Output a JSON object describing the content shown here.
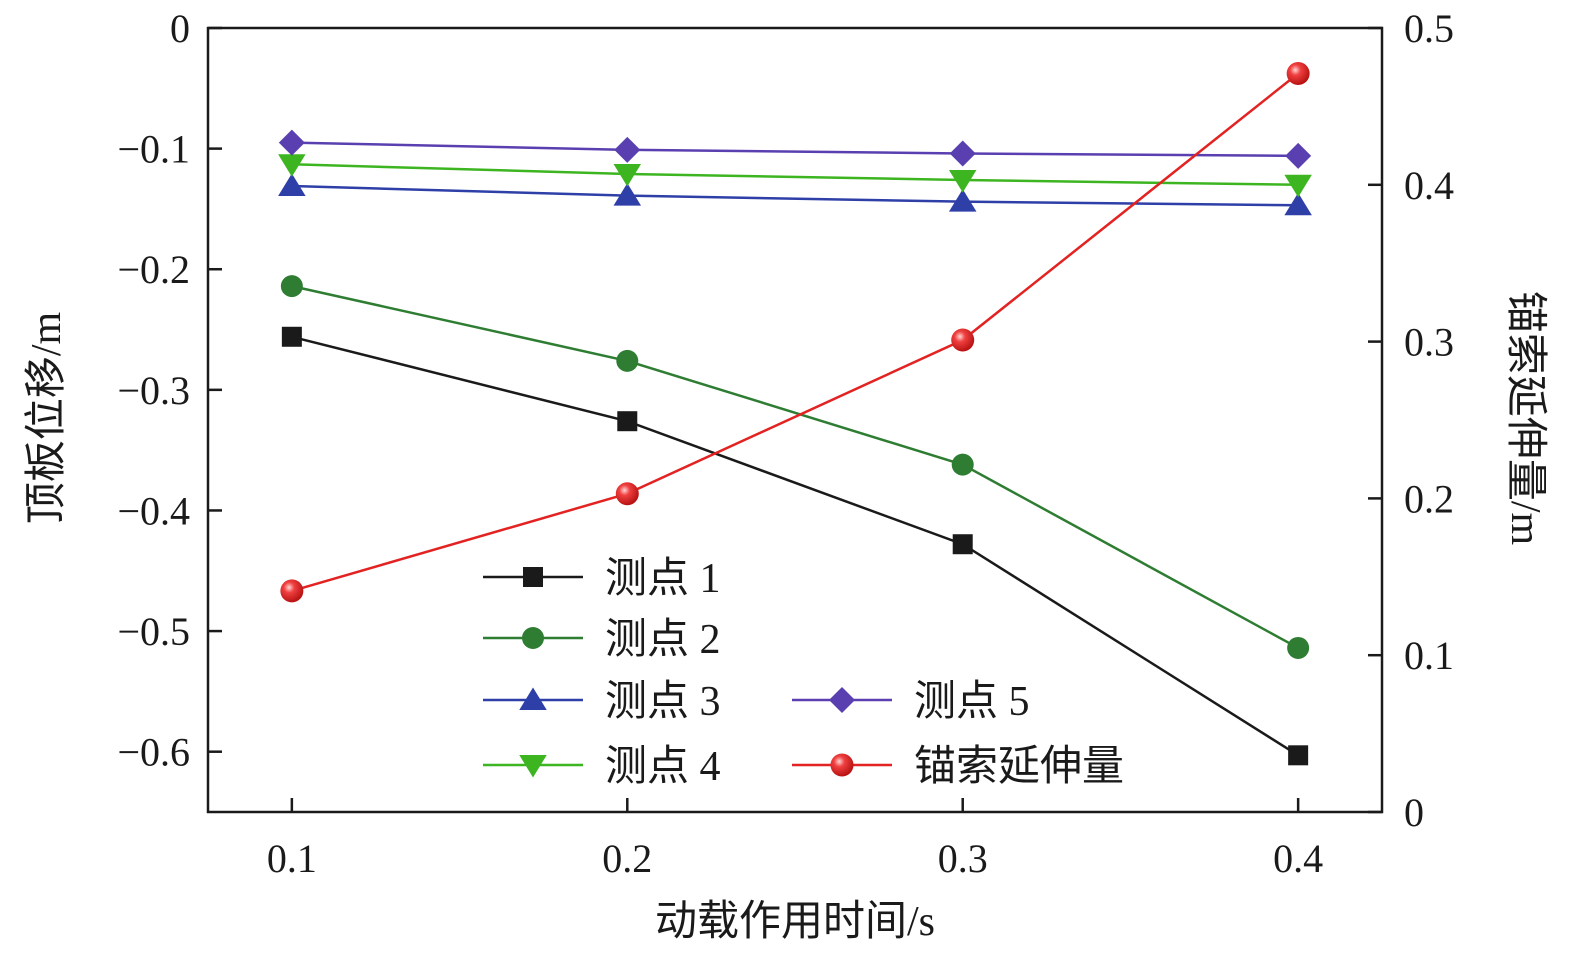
{
  "chart_data": {
    "type": "line",
    "title": "",
    "xlabel": "动载作用时间/s",
    "ylabel": "顶板位移/m",
    "y2label": "锚索延伸量/m",
    "x": [
      0.1,
      0.2,
      0.3,
      0.4
    ],
    "x_tick_labels": [
      "0.1",
      "0.2",
      "0.3",
      "0.4"
    ],
    "xlim": [
      0.075,
      0.425
    ],
    "ylim": [
      -0.65,
      0
    ],
    "y_ticks": [
      0,
      -0.1,
      -0.2,
      -0.3,
      -0.4,
      -0.5,
      -0.6
    ],
    "y_tick_labels": [
      "0",
      "−0.1",
      "−0.2",
      "−0.3",
      "−0.4",
      "−0.5",
      "−0.6"
    ],
    "y2lim": [
      0,
      0.5
    ],
    "y2_ticks": [
      0.5,
      0.4,
      0.3,
      0.2,
      0.1,
      0
    ],
    "y2_tick_labels": [
      "0.5",
      "0.4",
      "0.3",
      "0.2",
      "0.1",
      "0"
    ],
    "grid": false,
    "legend_position": "bottom-center",
    "series": [
      {
        "name": "测点 1",
        "axis": "left",
        "marker": "square",
        "color": "#1a1a1a",
        "values": [
          -0.256,
          -0.326,
          -0.428,
          -0.603
        ]
      },
      {
        "name": "测点 2",
        "axis": "left",
        "marker": "circle",
        "color": "#2e7d32",
        "values": [
          -0.214,
          -0.276,
          -0.362,
          -0.514
        ]
      },
      {
        "name": "测点 3",
        "axis": "left",
        "marker": "triangle-up",
        "color": "#2e3fa8",
        "values": [
          -0.131,
          -0.139,
          -0.144,
          -0.147
        ]
      },
      {
        "name": "测点 4",
        "axis": "left",
        "marker": "triangle-down",
        "color": "#3cb521",
        "values": [
          -0.113,
          -0.121,
          -0.126,
          -0.13
        ]
      },
      {
        "name": "测点 5",
        "axis": "left",
        "marker": "diamond",
        "color": "#5a3fb0",
        "values": [
          -0.095,
          -0.101,
          -0.104,
          -0.106
        ]
      },
      {
        "name": "锚索延伸量",
        "axis": "right",
        "marker": "sphere",
        "color": "#e32222",
        "values": [
          0.141,
          0.203,
          0.301,
          0.471
        ]
      }
    ],
    "legend_order": [
      [
        "测点 1",
        "测点 2",
        "测点 3",
        "测点 4"
      ],
      [
        "测点 5",
        "锚索延伸量"
      ]
    ]
  }
}
